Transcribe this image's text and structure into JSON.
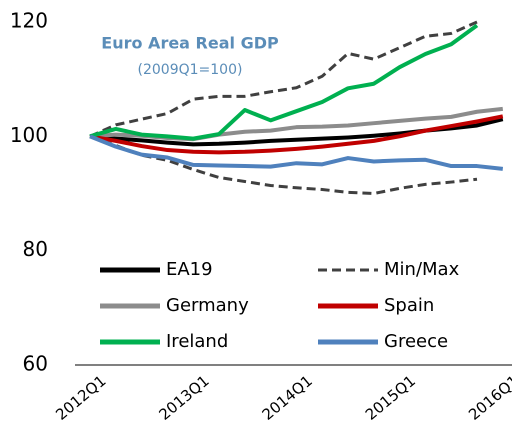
{
  "chart_data": {
    "type": "line",
    "title": "Euro Area Real GDP",
    "subtitle": "(2009Q1=100)",
    "categories": [
      "2012Q1",
      null,
      null,
      null,
      "2013Q1",
      null,
      null,
      null,
      "2014Q1",
      null,
      null,
      null,
      "2015Q1",
      null,
      null,
      null,
      "2016Q1"
    ],
    "ylim": [
      60,
      120
    ],
    "yticks": [
      60,
      80,
      100,
      120
    ],
    "grid": false,
    "legend": "bottom",
    "series": [
      {
        "name": "EA19",
        "color": "#000000",
        "values": [
          100,
          99.6,
          99.3,
          98.9,
          98.6,
          98.7,
          98.9,
          99.2,
          99.4,
          99.6,
          99.8,
          100.1,
          100.5,
          101.0,
          101.4,
          101.9,
          103.0
        ]
      },
      {
        "name": "Min/Max",
        "color": "#404040",
        "dashed": true,
        "values": [
          100,
          102,
          103,
          104,
          106.5,
          107,
          107,
          107.8,
          108.5,
          110.5,
          114.5,
          113.5,
          115.5,
          117.5,
          118,
          120,
          null
        ],
        "values_min": [
          100,
          98.4,
          96.7,
          95.8,
          94.2,
          92.8,
          92.1,
          91.4,
          91.0,
          90.7,
          90.2,
          90.0,
          90.9,
          91.6,
          92.0,
          92.5,
          null
        ]
      },
      {
        "name": "Germany",
        "color": "#8c8c8c",
        "values": [
          100,
          100.3,
          100.1,
          99.7,
          99.5,
          100.3,
          100.8,
          101.0,
          101.6,
          101.7,
          101.9,
          102.3,
          102.7,
          103.1,
          103.4,
          104.3,
          104.8
        ]
      },
      {
        "name": "Spain",
        "color": "#c00000",
        "values": [
          100,
          99.2,
          98.3,
          97.6,
          97.3,
          97.2,
          97.3,
          97.5,
          97.8,
          98.2,
          98.7,
          99.2,
          100.0,
          101.0,
          101.8,
          102.6,
          103.5
        ]
      },
      {
        "name": "Ireland",
        "color": "#00b050",
        "values": [
          100,
          101.3,
          100.3,
          100.0,
          99.6,
          100.4,
          104.6,
          102.8,
          104.4,
          106.0,
          108.4,
          109.2,
          112.1,
          114.4,
          116.1,
          119.4,
          null
        ]
      },
      {
        "name": "Greece",
        "color": "#4f81bd",
        "values": [
          100,
          98.2,
          96.8,
          96.3,
          95.0,
          94.9,
          94.8,
          94.7,
          95.3,
          95.1,
          96.2,
          95.6,
          95.8,
          95.9,
          94.8,
          94.8,
          94.3
        ]
      }
    ]
  }
}
